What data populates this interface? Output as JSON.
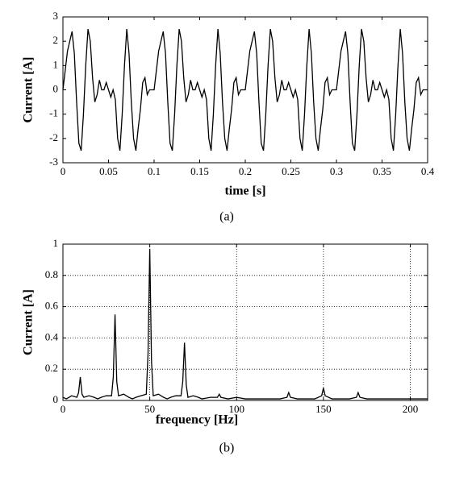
{
  "chart_data": [
    {
      "type": "line",
      "xlabel": "time [s]",
      "ylabel": "Current [A]",
      "caption": "(a)",
      "xlim": [
        0,
        0.4
      ],
      "ylim": [
        -3,
        3
      ],
      "xticks": [
        0,
        0.05,
        0.1,
        0.15,
        0.2,
        0.25,
        0.3,
        0.35,
        0.4
      ],
      "yticks": [
        -3,
        -2,
        -1,
        0,
        1,
        2,
        3
      ],
      "grid": false,
      "color": "#000000",
      "x": [
        0,
        0.0025,
        0.005,
        0.0075,
        0.01,
        0.0125,
        0.015,
        0.0175,
        0.02,
        0.0225,
        0.025,
        0.0275,
        0.03,
        0.0325,
        0.035,
        0.0375,
        0.04,
        0.0425,
        0.045,
        0.0475,
        0.05,
        0.0525,
        0.055,
        0.0575,
        0.06,
        0.0625,
        0.065,
        0.0675,
        0.07,
        0.0725,
        0.075,
        0.0775,
        0.08,
        0.0825,
        0.085,
        0.0875,
        0.09,
        0.0925,
        0.095,
        0.0975,
        0.1,
        0.1025,
        0.105,
        0.1075,
        0.11,
        0.1125,
        0.115,
        0.1175,
        0.12,
        0.1225,
        0.125,
        0.1275,
        0.13,
        0.1325,
        0.135,
        0.1375,
        0.14,
        0.1425,
        0.145,
        0.1475,
        0.15,
        0.1525,
        0.155,
        0.1575,
        0.16,
        0.1625,
        0.165,
        0.1675,
        0.17,
        0.1725,
        0.175,
        0.1775,
        0.18,
        0.1825,
        0.185,
        0.1875,
        0.19,
        0.1925,
        0.195,
        0.1975,
        0.2,
        0.2025,
        0.205,
        0.2075,
        0.21,
        0.2125,
        0.215,
        0.2175,
        0.22,
        0.2225,
        0.225,
        0.2275,
        0.23,
        0.2325,
        0.235,
        0.2375,
        0.24,
        0.2425,
        0.245,
        0.2475,
        0.25,
        0.2525,
        0.255,
        0.2575,
        0.26,
        0.2625,
        0.265,
        0.2675,
        0.27,
        0.2725,
        0.275,
        0.2775,
        0.28,
        0.2825,
        0.285,
        0.2875,
        0.29,
        0.2925,
        0.295,
        0.2975,
        0.3,
        0.3025,
        0.305,
        0.3075,
        0.31,
        0.3125,
        0.315,
        0.3175,
        0.32,
        0.3225,
        0.325,
        0.3275,
        0.33,
        0.3325,
        0.335,
        0.3375,
        0.34,
        0.3425,
        0.345,
        0.3475,
        0.35,
        0.3525,
        0.355,
        0.3575,
        0.36,
        0.3625,
        0.365,
        0.3675,
        0.37,
        0.3725,
        0.375,
        0.3775,
        0.38,
        0.3825,
        0.385,
        0.3875,
        0.39,
        0.3925,
        0.395,
        0.3975,
        0.4
      ],
      "values": [
        0,
        0.8,
        1.6,
        2.0,
        2.4,
        1.5,
        -0.5,
        -2.2,
        -2.5,
        -1.0,
        1.0,
        2.5,
        2.0,
        0.5,
        -0.5,
        -0.2,
        0.4,
        0.0,
        0.0,
        0.3,
        0.0,
        -0.3,
        0.0,
        -0.4,
        -2.0,
        -2.5,
        -1.0,
        1.0,
        2.5,
        1.5,
        -0.5,
        -2.0,
        -2.5,
        -1.6,
        -0.8,
        0.3,
        0.5,
        -0.2,
        0.0,
        0.0,
        0,
        0.8,
        1.6,
        2.0,
        2.4,
        1.5,
        -0.5,
        -2.2,
        -2.5,
        -1.0,
        1.0,
        2.5,
        2.0,
        0.5,
        -0.5,
        -0.2,
        0.4,
        0.0,
        0.0,
        0.3,
        0.0,
        -0.3,
        0.0,
        -0.4,
        -2.0,
        -2.5,
        -1.0,
        1.0,
        2.5,
        1.5,
        -0.5,
        -2.0,
        -2.5,
        -1.6,
        -0.8,
        0.3,
        0.5,
        -0.2,
        0.0,
        0.0,
        0,
        0.8,
        1.6,
        2.0,
        2.4,
        1.5,
        -0.5,
        -2.2,
        -2.5,
        -1.0,
        1.0,
        2.5,
        2.0,
        0.5,
        -0.5,
        -0.2,
        0.4,
        0.0,
        0.0,
        0.3,
        0.0,
        -0.3,
        0.0,
        -0.4,
        -2.0,
        -2.5,
        -1.0,
        1.0,
        2.5,
        1.5,
        -0.5,
        -2.0,
        -2.5,
        -1.6,
        -0.8,
        0.3,
        0.5,
        -0.2,
        0.0,
        0.0,
        0,
        0.8,
        1.6,
        2.0,
        2.4,
        1.5,
        -0.5,
        -2.2,
        -2.5,
        -1.0,
        1.0,
        2.5,
        2.0,
        0.5,
        -0.5,
        -0.2,
        0.4,
        0.0,
        0.0,
        0.3,
        0.0,
        -0.3,
        0.0,
        -0.4,
        -2.0,
        -2.5,
        -1.0,
        1.0,
        2.5,
        1.5,
        -0.5,
        -2.0,
        -2.5,
        -1.6,
        -0.8,
        0.3,
        0.5,
        -0.2,
        0.0,
        0.0,
        0
      ]
    },
    {
      "type": "line",
      "xlabel": "frequency [Hz]",
      "ylabel": "Current [A]",
      "caption": "(b)",
      "xlim": [
        0,
        210
      ],
      "ylim": [
        0,
        1
      ],
      "xticks": [
        0,
        50,
        100,
        150,
        200
      ],
      "yticks": [
        0,
        0.2,
        0.4,
        0.6,
        0.8,
        1
      ],
      "grid": true,
      "color": "#000000",
      "x": [
        0,
        2,
        5,
        8,
        9,
        10,
        11,
        12,
        15,
        18,
        20,
        22,
        25,
        28,
        29,
        30,
        31,
        32,
        35,
        38,
        40,
        42,
        45,
        48,
        49,
        50,
        51,
        52,
        55,
        58,
        60,
        62,
        65,
        68,
        69,
        70,
        71,
        72,
        75,
        78,
        80,
        85,
        89,
        90,
        91,
        95,
        100,
        105,
        110,
        115,
        120,
        125,
        129,
        130,
        131,
        135,
        140,
        145,
        149,
        150,
        151,
        155,
        160,
        165,
        169,
        170,
        171,
        175,
        180,
        185,
        190,
        195,
        200,
        205,
        210
      ],
      "values": [
        0.02,
        0.01,
        0.03,
        0.02,
        0.05,
        0.15,
        0.04,
        0.02,
        0.03,
        0.02,
        0.01,
        0.02,
        0.03,
        0.03,
        0.15,
        0.55,
        0.12,
        0.03,
        0.04,
        0.02,
        0.01,
        0.02,
        0.03,
        0.04,
        0.3,
        0.97,
        0.25,
        0.03,
        0.04,
        0.02,
        0.01,
        0.02,
        0.03,
        0.03,
        0.12,
        0.37,
        0.1,
        0.02,
        0.03,
        0.02,
        0.01,
        0.02,
        0.02,
        0.04,
        0.02,
        0.01,
        0.02,
        0.01,
        0.01,
        0.01,
        0.01,
        0.01,
        0.02,
        0.05,
        0.02,
        0.01,
        0.01,
        0.01,
        0.03,
        0.08,
        0.03,
        0.01,
        0.01,
        0.01,
        0.02,
        0.05,
        0.02,
        0.01,
        0.01,
        0.01,
        0.01,
        0.01,
        0.01,
        0.01,
        0.01
      ]
    }
  ]
}
